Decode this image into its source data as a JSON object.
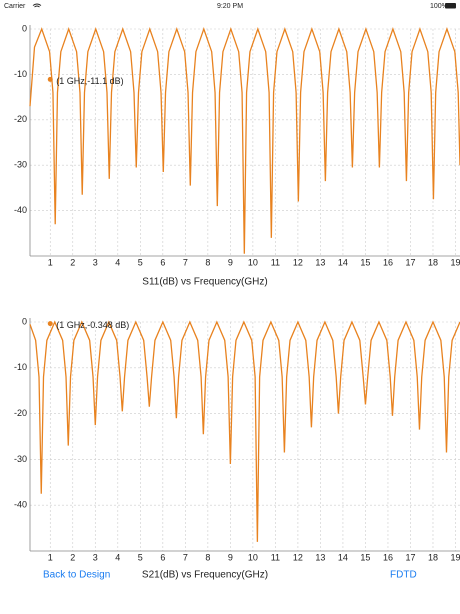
{
  "status_bar": {
    "carrier": "Carrier",
    "time": "9:20 PM",
    "battery": "100%"
  },
  "chart_data": [
    {
      "type": "line",
      "title": "S11(dB) vs Frequency(GHz)",
      "color": "#e8821f",
      "grid": true,
      "xlim": [
        0.1,
        19.2
      ],
      "ylim": [
        -50,
        0
      ],
      "xticks": [
        1,
        2,
        3,
        4,
        5,
        6,
        7,
        8,
        9,
        10,
        11,
        12,
        13,
        14,
        15,
        16,
        17,
        18,
        19
      ],
      "yticks": [
        0,
        -10,
        -20,
        -30,
        -40
      ],
      "x": [
        0.1,
        0.3,
        0.62,
        0.97,
        1.12,
        1.22,
        1.32,
        1.47,
        1.82,
        2.17,
        2.32,
        2.42,
        2.52,
        2.67,
        3.02,
        3.37,
        3.52,
        3.62,
        3.72,
        3.87,
        4.22,
        4.57,
        4.72,
        4.82,
        4.92,
        5.07,
        5.42,
        5.77,
        5.92,
        6.02,
        6.12,
        6.27,
        6.62,
        6.97,
        7.12,
        7.22,
        7.32,
        7.47,
        7.82,
        8.17,
        8.32,
        8.42,
        8.52,
        8.67,
        9.02,
        9.37,
        9.52,
        9.62,
        9.72,
        9.87,
        10.22,
        10.57,
        10.72,
        10.82,
        10.92,
        11.07,
        11.42,
        11.77,
        11.92,
        12.02,
        12.12,
        12.27,
        12.62,
        12.97,
        13.12,
        13.22,
        13.32,
        13.47,
        13.82,
        14.17,
        14.32,
        14.42,
        14.52,
        14.67,
        15.02,
        15.37,
        15.52,
        15.62,
        15.72,
        15.87,
        16.22,
        16.57,
        16.72,
        16.82,
        16.92,
        17.07,
        17.42,
        17.77,
        17.92,
        18.02,
        18.12,
        18.27,
        18.62,
        18.97,
        19.12,
        19.2
      ],
      "values": [
        -17,
        -4,
        0,
        -5,
        -14,
        -43,
        -14,
        -5,
        0,
        -5,
        -14,
        -36.5,
        -14,
        -5,
        0,
        -5,
        -14,
        -33,
        -14,
        -5,
        0,
        -5,
        -14,
        -30.5,
        -14,
        -5,
        0,
        -5,
        -14,
        -31.5,
        -14,
        -5,
        0,
        -5,
        -14,
        -34.5,
        -14,
        -5,
        0,
        -5,
        -14,
        -39,
        -14,
        -5,
        0,
        -5,
        -14,
        -49.5,
        -14,
        -5,
        0,
        -5,
        -14,
        -46,
        -14,
        -5,
        0,
        -5,
        -14,
        -38,
        -14,
        -5,
        0,
        -5,
        -14,
        -33.5,
        -14,
        -5,
        0,
        -5,
        -14,
        -30.5,
        -14,
        -5,
        0,
        -5,
        -14,
        -30.5,
        -14,
        -5,
        0,
        -5,
        -14,
        -33.5,
        -14,
        -5,
        0,
        -5,
        -14,
        -37.5,
        -14,
        -5,
        0,
        -5,
        -14,
        -30
      ],
      "marker": {
        "x": 1,
        "y": -11.1,
        "label": "(1 GHz,-11.1 dB)"
      }
    },
    {
      "type": "line",
      "title": "S21(dB) vs Frequency(GHz)",
      "color": "#e8821f",
      "grid": true,
      "xlim": [
        0.1,
        19.2
      ],
      "ylim": [
        -50,
        0
      ],
      "xticks": [
        1,
        2,
        3,
        4,
        5,
        6,
        7,
        8,
        9,
        10,
        11,
        12,
        13,
        14,
        15,
        16,
        17,
        18,
        19
      ],
      "yticks": [
        0,
        -10,
        -20,
        -30,
        -40
      ],
      "x": [
        0.1,
        0.35,
        0.5,
        0.6,
        0.7,
        0.85,
        1.2,
        1.55,
        1.7,
        1.8,
        1.9,
        2.05,
        2.4,
        2.75,
        2.9,
        3.0,
        3.1,
        3.25,
        3.6,
        3.95,
        4.1,
        4.2,
        4.3,
        4.45,
        4.8,
        5.15,
        5.3,
        5.4,
        5.5,
        5.65,
        6.0,
        6.35,
        6.5,
        6.6,
        6.7,
        6.85,
        7.2,
        7.55,
        7.7,
        7.8,
        7.9,
        8.05,
        8.4,
        8.75,
        8.9,
        9.0,
        9.1,
        9.25,
        9.6,
        9.95,
        10.1,
        10.2,
        10.3,
        10.45,
        10.8,
        11.15,
        11.3,
        11.4,
        11.5,
        11.65,
        12.0,
        12.35,
        12.5,
        12.6,
        12.7,
        12.85,
        13.2,
        13.55,
        13.7,
        13.8,
        13.9,
        14.05,
        14.4,
        14.75,
        14.9,
        15.0,
        15.1,
        15.25,
        15.6,
        15.95,
        16.1,
        16.2,
        16.3,
        16.45,
        16.8,
        17.15,
        17.3,
        17.4,
        17.5,
        17.65,
        18.0,
        18.35,
        18.5,
        18.6,
        18.7,
        18.85,
        19.2
      ],
      "values": [
        -0.5,
        -4,
        -12,
        -37.5,
        -12,
        -4,
        0,
        -4,
        -12,
        -27,
        -12,
        -4,
        0,
        -4,
        -12,
        -22.5,
        -12,
        -4,
        0,
        -4,
        -12,
        -19.5,
        -12,
        -4,
        0,
        -4,
        -12,
        -18.5,
        -12,
        -4,
        0,
        -4,
        -12,
        -21,
        -12,
        -4,
        0,
        -4,
        -12,
        -24.5,
        -12,
        -4,
        0,
        -4,
        -12,
        -31,
        -12,
        -4,
        0,
        -4,
        -12,
        -48,
        -12,
        -4,
        0,
        -4,
        -12,
        -28.5,
        -12,
        -4,
        0,
        -4,
        -12,
        -23,
        -12,
        -4,
        0,
        -4,
        -12,
        -20,
        -12,
        -4,
        0,
        -4,
        -12,
        -18,
        -12,
        -4,
        0,
        -4,
        -12,
        -20.5,
        -12,
        -4,
        0,
        -4,
        -12,
        -23.5,
        -12,
        -4,
        0,
        -4,
        -12,
        -28.5,
        -12,
        -4,
        0
      ],
      "marker": {
        "x": 1,
        "y": -0.348,
        "label": "(1 GHz,-0.348 dB)"
      }
    }
  ],
  "buttons": [
    "Back to Design",
    "FDTD"
  ]
}
